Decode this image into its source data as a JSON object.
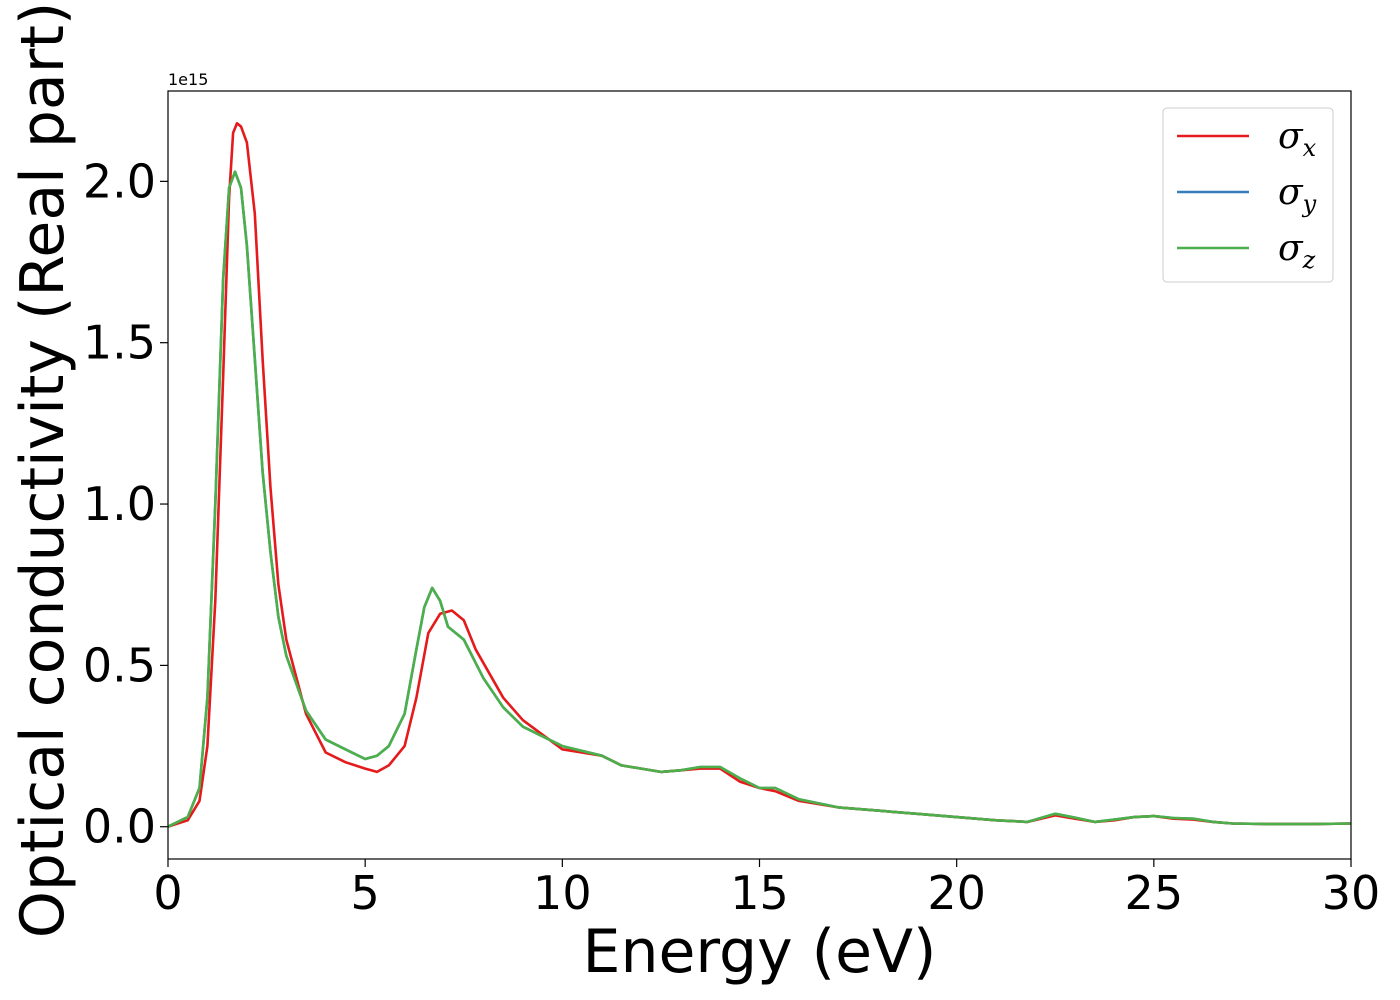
{
  "chart_data": {
    "type": "line",
    "title": "",
    "xlabel": "Energy (eV)",
    "ylabel": "Optical conductivity (Real part)",
    "y_offset_label": "1e15",
    "xlim": [
      0,
      30
    ],
    "ylim": [
      -0.1,
      2.28
    ],
    "x_ticks": [
      0,
      5,
      10,
      15,
      20,
      25,
      30
    ],
    "x_tick_labels": [
      "0",
      "5",
      "10",
      "15",
      "20",
      "25",
      "30"
    ],
    "y_ticks": [
      0.0,
      0.5,
      1.0,
      1.5,
      2.0
    ],
    "y_tick_labels": [
      "0.0",
      "0.5",
      "1.0",
      "1.5",
      "2.0"
    ],
    "grid": false,
    "legend_position": "top-right",
    "series": [
      {
        "name": "σx",
        "legend_symbol": "σ",
        "legend_subscript": "x",
        "color": "#e41a1c",
        "points": [
          [
            0,
            0
          ],
          [
            0.5,
            0.02
          ],
          [
            0.8,
            0.08
          ],
          [
            1.0,
            0.25
          ],
          [
            1.2,
            0.7
          ],
          [
            1.4,
            1.4
          ],
          [
            1.55,
            1.95
          ],
          [
            1.65,
            2.15
          ],
          [
            1.75,
            2.18
          ],
          [
            1.85,
            2.17
          ],
          [
            2.0,
            2.12
          ],
          [
            2.2,
            1.9
          ],
          [
            2.4,
            1.45
          ],
          [
            2.6,
            1.05
          ],
          [
            2.8,
            0.75
          ],
          [
            3.0,
            0.58
          ],
          [
            3.5,
            0.35
          ],
          [
            4.0,
            0.23
          ],
          [
            4.5,
            0.2
          ],
          [
            5.0,
            0.18
          ],
          [
            5.3,
            0.17
          ],
          [
            5.6,
            0.19
          ],
          [
            6.0,
            0.25
          ],
          [
            6.3,
            0.4
          ],
          [
            6.6,
            0.6
          ],
          [
            6.9,
            0.66
          ],
          [
            7.2,
            0.67
          ],
          [
            7.5,
            0.64
          ],
          [
            7.8,
            0.55
          ],
          [
            8.5,
            0.4
          ],
          [
            9.0,
            0.33
          ],
          [
            10.0,
            0.24
          ],
          [
            11.0,
            0.22
          ],
          [
            11.5,
            0.19
          ],
          [
            12.0,
            0.18
          ],
          [
            12.5,
            0.17
          ],
          [
            13.0,
            0.175
          ],
          [
            13.5,
            0.18
          ],
          [
            14.0,
            0.18
          ],
          [
            14.5,
            0.14
          ],
          [
            15.0,
            0.12
          ],
          [
            15.4,
            0.11
          ],
          [
            16.0,
            0.08
          ],
          [
            17.0,
            0.06
          ],
          [
            18.0,
            0.05
          ],
          [
            19.0,
            0.04
          ],
          [
            20.0,
            0.03
          ],
          [
            21.0,
            0.02
          ],
          [
            21.8,
            0.015
          ],
          [
            22.5,
            0.035
          ],
          [
            23.0,
            0.025
          ],
          [
            23.5,
            0.015
          ],
          [
            24.0,
            0.02
          ],
          [
            24.5,
            0.03
          ],
          [
            25.0,
            0.033
          ],
          [
            25.5,
            0.025
          ],
          [
            26.0,
            0.022
          ],
          [
            26.5,
            0.015
          ],
          [
            27.0,
            0.01
          ],
          [
            28.0,
            0.008
          ],
          [
            29.0,
            0.008
          ],
          [
            30.0,
            0.01
          ]
        ]
      },
      {
        "name": "σy",
        "legend_symbol": "σ",
        "legend_subscript": "y",
        "color": "#377eb8",
        "points": [
          [
            0,
            0
          ],
          [
            0.5,
            0.03
          ],
          [
            0.8,
            0.12
          ],
          [
            1.0,
            0.4
          ],
          [
            1.2,
            1.0
          ],
          [
            1.4,
            1.7
          ],
          [
            1.55,
            1.98
          ],
          [
            1.7,
            2.03
          ],
          [
            1.85,
            1.98
          ],
          [
            2.0,
            1.8
          ],
          [
            2.2,
            1.45
          ],
          [
            2.4,
            1.1
          ],
          [
            2.6,
            0.85
          ],
          [
            2.8,
            0.65
          ],
          [
            3.0,
            0.53
          ],
          [
            3.5,
            0.36
          ],
          [
            4.0,
            0.27
          ],
          [
            4.5,
            0.24
          ],
          [
            5.0,
            0.21
          ],
          [
            5.3,
            0.22
          ],
          [
            5.6,
            0.25
          ],
          [
            6.0,
            0.35
          ],
          [
            6.3,
            0.55
          ],
          [
            6.5,
            0.68
          ],
          [
            6.7,
            0.74
          ],
          [
            6.9,
            0.7
          ],
          [
            7.1,
            0.62
          ],
          [
            7.5,
            0.58
          ],
          [
            8.0,
            0.46
          ],
          [
            8.5,
            0.37
          ],
          [
            9.0,
            0.31
          ],
          [
            10.0,
            0.25
          ],
          [
            11.0,
            0.22
          ],
          [
            11.5,
            0.19
          ],
          [
            12.0,
            0.18
          ],
          [
            12.5,
            0.17
          ],
          [
            13.0,
            0.175
          ],
          [
            13.5,
            0.185
          ],
          [
            14.0,
            0.185
          ],
          [
            14.5,
            0.15
          ],
          [
            15.0,
            0.12
          ],
          [
            15.4,
            0.12
          ],
          [
            16.0,
            0.085
          ],
          [
            17.0,
            0.06
          ],
          [
            18.0,
            0.05
          ],
          [
            19.0,
            0.04
          ],
          [
            20.0,
            0.03
          ],
          [
            21.0,
            0.02
          ],
          [
            21.8,
            0.015
          ],
          [
            22.5,
            0.04
          ],
          [
            23.0,
            0.028
          ],
          [
            23.5,
            0.015
          ],
          [
            24.0,
            0.022
          ],
          [
            24.5,
            0.03
          ],
          [
            25.0,
            0.033
          ],
          [
            25.5,
            0.027
          ],
          [
            26.0,
            0.025
          ],
          [
            26.5,
            0.015
          ],
          [
            27.0,
            0.01
          ],
          [
            28.0,
            0.008
          ],
          [
            29.0,
            0.008
          ],
          [
            30.0,
            0.01
          ]
        ]
      },
      {
        "name": "σz",
        "legend_symbol": "σ",
        "legend_subscript": "z",
        "color": "#4daf4a",
        "points": [
          [
            0,
            0
          ],
          [
            0.5,
            0.03
          ],
          [
            0.8,
            0.12
          ],
          [
            1.0,
            0.4
          ],
          [
            1.2,
            1.0
          ],
          [
            1.4,
            1.7
          ],
          [
            1.55,
            1.98
          ],
          [
            1.7,
            2.03
          ],
          [
            1.85,
            1.98
          ],
          [
            2.0,
            1.8
          ],
          [
            2.2,
            1.45
          ],
          [
            2.4,
            1.1
          ],
          [
            2.6,
            0.85
          ],
          [
            2.8,
            0.65
          ],
          [
            3.0,
            0.53
          ],
          [
            3.5,
            0.36
          ],
          [
            4.0,
            0.27
          ],
          [
            4.5,
            0.24
          ],
          [
            5.0,
            0.21
          ],
          [
            5.3,
            0.22
          ],
          [
            5.6,
            0.25
          ],
          [
            6.0,
            0.35
          ],
          [
            6.3,
            0.55
          ],
          [
            6.5,
            0.68
          ],
          [
            6.7,
            0.74
          ],
          [
            6.9,
            0.7
          ],
          [
            7.1,
            0.62
          ],
          [
            7.5,
            0.58
          ],
          [
            8.0,
            0.46
          ],
          [
            8.5,
            0.37
          ],
          [
            9.0,
            0.31
          ],
          [
            10.0,
            0.25
          ],
          [
            11.0,
            0.22
          ],
          [
            11.5,
            0.19
          ],
          [
            12.0,
            0.18
          ],
          [
            12.5,
            0.17
          ],
          [
            13.0,
            0.175
          ],
          [
            13.5,
            0.185
          ],
          [
            14.0,
            0.185
          ],
          [
            14.5,
            0.15
          ],
          [
            15.0,
            0.12
          ],
          [
            15.4,
            0.12
          ],
          [
            16.0,
            0.085
          ],
          [
            17.0,
            0.06
          ],
          [
            18.0,
            0.05
          ],
          [
            19.0,
            0.04
          ],
          [
            20.0,
            0.03
          ],
          [
            21.0,
            0.02
          ],
          [
            21.8,
            0.015
          ],
          [
            22.5,
            0.04
          ],
          [
            23.0,
            0.028
          ],
          [
            23.5,
            0.015
          ],
          [
            24.0,
            0.022
          ],
          [
            24.5,
            0.03
          ],
          [
            25.0,
            0.033
          ],
          [
            25.5,
            0.027
          ],
          [
            26.0,
            0.025
          ],
          [
            26.5,
            0.015
          ],
          [
            27.0,
            0.01
          ],
          [
            28.0,
            0.008
          ],
          [
            29.0,
            0.008
          ],
          [
            30.0,
            0.01
          ]
        ]
      }
    ]
  }
}
